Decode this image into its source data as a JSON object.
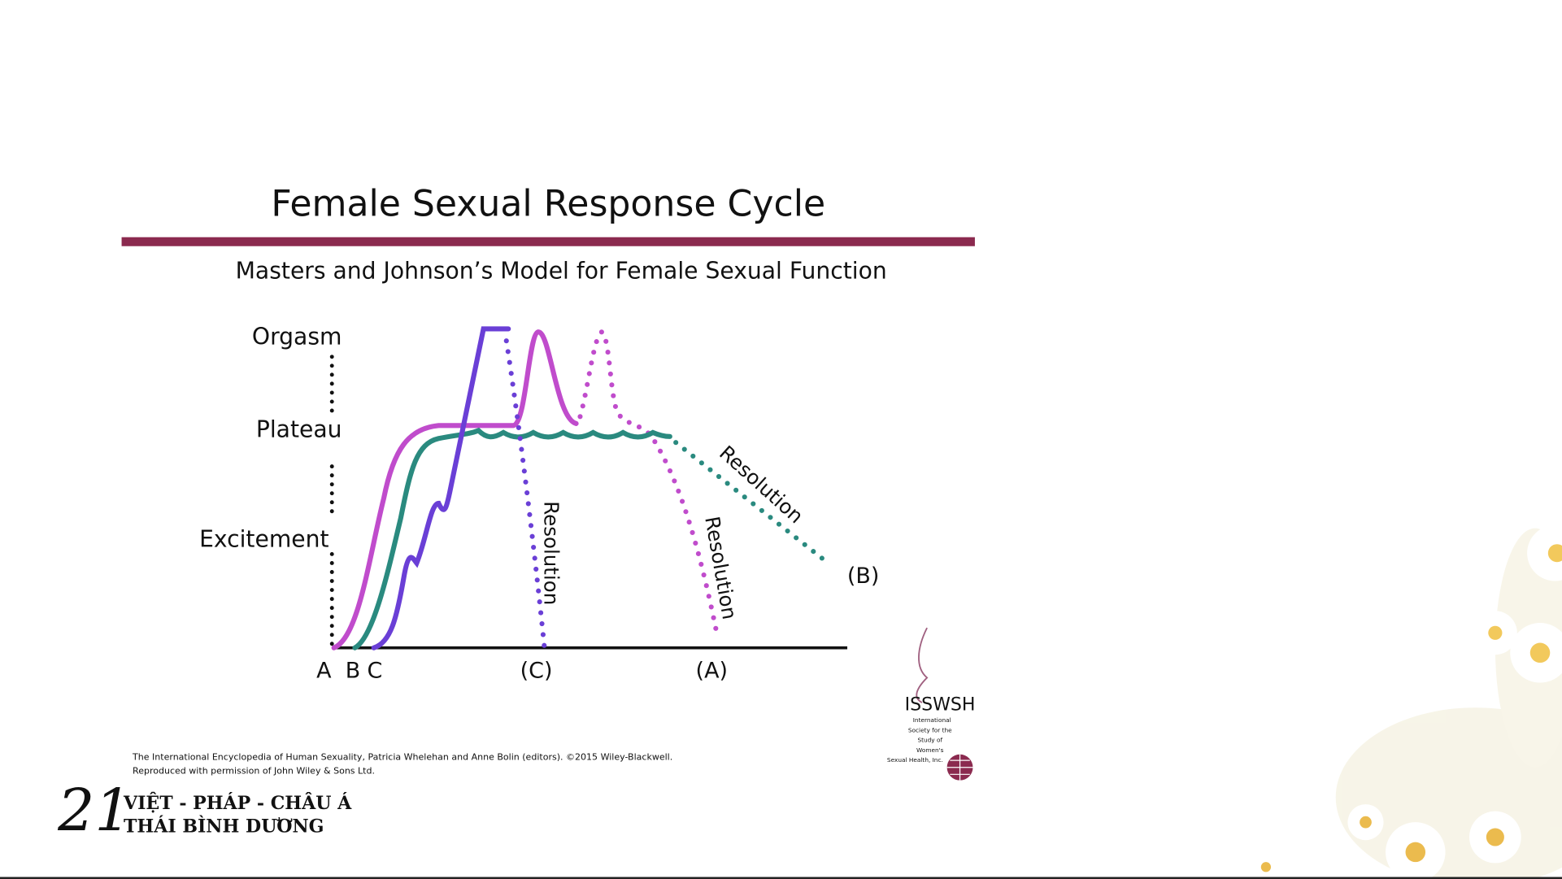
{
  "header": {
    "title": "Female Sexual Response Cycle",
    "subtitle": "Masters and Johnson’s Model for Female Sexual Function"
  },
  "diagram": {
    "phases": [
      "Orgasm",
      "Plateau",
      "Excitement"
    ],
    "start_labels": [
      "A",
      "B",
      "C"
    ],
    "end_labels": [
      "(C)",
      "(A)",
      "(B)"
    ],
    "resolution_labels": [
      "Resolution",
      "Resolution",
      "Resolution"
    ]
  },
  "citation": [
    "The International Encyclopedia of Human Sexuality, Patricia Whelehan and Anne Bolin (editors). ©2015 Wiley-Blackwell.",
    "Reproduced with permission of John Wiley & Sons Ltd."
  ],
  "isswsh_logo": {
    "name": "ISSWSH",
    "lines": [
      "International",
      "Society for the",
      "Study of",
      "Women's",
      "Sexual Health, Inc."
    ]
  },
  "footer_logo": {
    "number": "21",
    "lines": [
      "VIỆT - PHÁP - CHÂU Á",
      "THÁI BÌNH DƯƠNG"
    ]
  }
}
